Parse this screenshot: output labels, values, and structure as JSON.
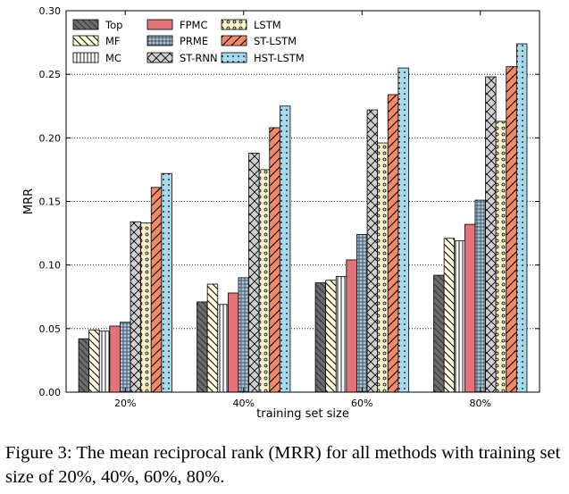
{
  "chart_data": {
    "type": "bar",
    "categories": [
      "20%",
      "40%",
      "60%",
      "80%"
    ],
    "xlabel": "training set size",
    "ylabel": "MRR",
    "ylim": [
      0,
      0.3
    ],
    "yticks": [
      "0.00",
      "0.05",
      "0.10",
      "0.15",
      "0.20",
      "0.25",
      "0.30"
    ],
    "grid": "horizontal dotted",
    "legend_position": "top-left",
    "series": [
      {
        "name": "Top",
        "color": "#6b6b6b",
        "pattern": "diagonal-back",
        "values": [
          0.042,
          0.071,
          0.086,
          0.092
        ]
      },
      {
        "name": "MF",
        "color": "#fdfde0",
        "pattern": "backslash",
        "values": [
          0.049,
          0.085,
          0.088,
          0.121
        ]
      },
      {
        "name": "MC",
        "color": "#ffffff",
        "pattern": "vertical",
        "values": [
          0.048,
          0.069,
          0.091,
          0.119
        ]
      },
      {
        "name": "FPMC",
        "color": "#e3737a",
        "pattern": "none",
        "values": [
          0.052,
          0.078,
          0.104,
          0.132
        ]
      },
      {
        "name": "PRME",
        "color": "#a7c4dd",
        "pattern": "grid",
        "values": [
          0.055,
          0.09,
          0.124,
          0.151
        ]
      },
      {
        "name": "ST-RNN",
        "color": "#d0d0d0",
        "pattern": "crosshatch",
        "values": [
          0.134,
          0.188,
          0.222,
          0.248
        ]
      },
      {
        "name": "LSTM",
        "color": "#fbf3cd",
        "pattern": "circles",
        "values": [
          0.133,
          0.175,
          0.196,
          0.213
        ]
      },
      {
        "name": "ST-LSTM",
        "color": "#f08a6d",
        "pattern": "slash",
        "values": [
          0.161,
          0.208,
          0.234,
          0.256
        ]
      },
      {
        "name": "HST-LSTM",
        "color": "#a8d8ea",
        "pattern": "dots",
        "values": [
          0.172,
          0.225,
          0.255,
          0.274
        ]
      }
    ]
  },
  "caption": "Figure 3: The mean reciprocal rank (MRR) for all methods with training set size of 20%, 40%, 60%, 80%."
}
